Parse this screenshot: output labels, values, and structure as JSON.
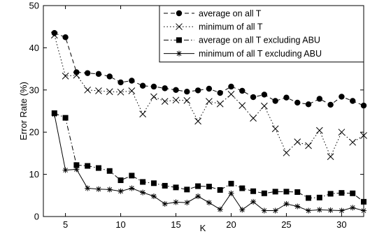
{
  "chart_data": {
    "type": "line",
    "title": "",
    "xlabel": "K",
    "ylabel": "Error Rate (%)",
    "xlim": [
      3,
      32
    ],
    "ylim": [
      0,
      50
    ],
    "xticks": [
      5,
      10,
      15,
      20,
      25,
      30
    ],
    "yticks": [
      0,
      10,
      20,
      30,
      40,
      50
    ],
    "grid": false,
    "legend_position": "top-right",
    "x": [
      4,
      5,
      6,
      7,
      8,
      9,
      10,
      11,
      12,
      13,
      14,
      15,
      16,
      17,
      18,
      19,
      20,
      21,
      22,
      23,
      24,
      25,
      26,
      27,
      28,
      29,
      30,
      31,
      32
    ],
    "series": [
      {
        "name": "average on all T",
        "line": "dashed",
        "marker": "circle",
        "color": "#000000",
        "values": [
          43.5,
          42.5,
          34.2,
          34.0,
          33.8,
          33.2,
          31.8,
          32.2,
          31.0,
          30.8,
          30.4,
          30.0,
          29.6,
          29.9,
          30.3,
          29.3,
          30.8,
          29.8,
          28.3,
          28.9,
          27.4,
          28.2,
          27.0,
          26.6,
          27.9,
          26.5,
          28.4,
          27.4,
          26.3
        ]
      },
      {
        "name": "minimum of all T",
        "line": "dotted",
        "marker": "x",
        "color": "#000000",
        "values": [
          43.0,
          33.3,
          33.5,
          30.0,
          29.8,
          29.6,
          29.5,
          29.8,
          24.3,
          28.4,
          27.3,
          27.6,
          27.5,
          22.6,
          27.3,
          26.7,
          29.0,
          26.3,
          23.3,
          26.2,
          20.8,
          15.1,
          17.7,
          16.8,
          20.4,
          14.2,
          20.0,
          17.6,
          19.2
        ]
      },
      {
        "name": "average on all T excluding ABU",
        "line": "dashdot",
        "marker": "square",
        "color": "#000000",
        "values": [
          24.5,
          23.4,
          12.2,
          12.0,
          11.5,
          10.8,
          8.6,
          9.7,
          8.2,
          7.9,
          7.3,
          6.9,
          6.4,
          7.2,
          7.1,
          6.3,
          7.8,
          6.7,
          6.0,
          5.5,
          5.9,
          5.9,
          5.8,
          4.4,
          4.5,
          5.4,
          5.6,
          5.5,
          3.5
        ]
      },
      {
        "name": "minimum of all T excluding ABU",
        "line": "solid",
        "marker": "asterisk",
        "color": "#000000",
        "values": [
          24.2,
          11.0,
          11.2,
          6.7,
          6.5,
          6.4,
          6.0,
          6.7,
          5.7,
          4.8,
          3.0,
          3.4,
          3.3,
          4.8,
          3.3,
          1.7,
          5.5,
          1.6,
          3.5,
          1.4,
          1.4,
          3.0,
          2.4,
          1.4,
          1.6,
          1.5,
          1.4,
          2.1,
          1.4
        ]
      }
    ]
  }
}
